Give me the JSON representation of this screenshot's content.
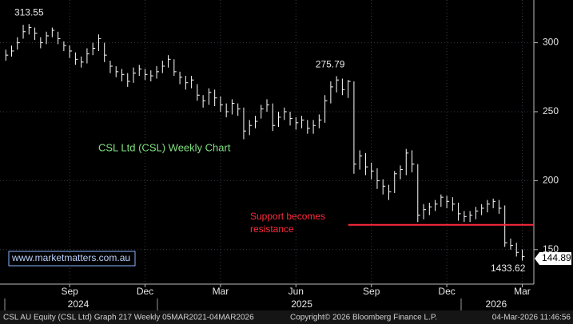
{
  "chart_data": {
    "type": "hlc_bar",
    "title": "CSL Ltd (CSL) Weekly Chart",
    "watermark": "www.marketmatters.com.au",
    "high": [
      295,
      298,
      304,
      313,
      313.55,
      311,
      304,
      308,
      311,
      308,
      301,
      298,
      293,
      290,
      296,
      300,
      306,
      300,
      287,
      283,
      281,
      278,
      282,
      284,
      281,
      280,
      283,
      287,
      291,
      288,
      279,
      276,
      276,
      270,
      262,
      267,
      266,
      261,
      256,
      259,
      256,
      253,
      244,
      247,
      255,
      259,
      256,
      250,
      253,
      250,
      246,
      247,
      244,
      244,
      248,
      262,
      272,
      275.79,
      274,
      273,
      272,
      222,
      220,
      213,
      209,
      201,
      197,
      207,
      211,
      223,
      222,
      212,
      183,
      184,
      186,
      190,
      189,
      188,
      184,
      178,
      178,
      181,
      183,
      186,
      187,
      186,
      182,
      158,
      155,
      150
    ],
    "low": [
      287,
      290,
      295,
      303,
      306,
      302,
      296,
      299,
      304,
      299,
      294,
      289,
      284,
      282,
      285,
      291,
      294,
      286,
      278,
      275,
      272,
      268,
      271,
      276,
      273,
      272,
      274,
      278,
      282,
      276,
      270,
      266,
      267,
      258,
      253,
      255,
      254,
      250,
      246,
      248,
      247,
      230,
      233,
      238,
      245,
      250,
      236,
      239,
      244,
      240,
      237,
      238,
      234,
      234,
      238,
      242,
      256,
      264,
      262,
      260,
      205,
      208,
      204,
      201,
      194,
      190,
      186,
      191,
      201,
      204,
      206,
      170,
      172,
      175,
      178,
      181,
      180,
      178,
      171,
      170,
      170,
      172,
      175,
      177,
      180,
      176,
      152,
      150,
      145,
      142
    ],
    "close": [
      291,
      294,
      300,
      308,
      311,
      307,
      300,
      305,
      309,
      303,
      298,
      294,
      288,
      286,
      292,
      296,
      303,
      291,
      283,
      279,
      277,
      272,
      278,
      281,
      277,
      276,
      279,
      283,
      288,
      279,
      275,
      271,
      273,
      262,
      258,
      264,
      260,
      255,
      250,
      256,
      252,
      236,
      240,
      243,
      252,
      255,
      240,
      246,
      250,
      245,
      242,
      244,
      238,
      240,
      244,
      258,
      268,
      273,
      266,
      272,
      212,
      218,
      210,
      207,
      200,
      196,
      192,
      205,
      208,
      220,
      212,
      175,
      179,
      181,
      183,
      188,
      185,
      183,
      176,
      174,
      175,
      178,
      180,
      183,
      185,
      180,
      155,
      153,
      148,
      144.89
    ],
    "color": "#ffffff",
    "xlim": [
      -1,
      91
    ],
    "ylim": [
      125,
      331
    ],
    "yticks": [
      150,
      200,
      250,
      300
    ],
    "xticks": [
      {
        "value": 11,
        "label": "Sep"
      },
      {
        "value": 24,
        "label": "Dec"
      },
      {
        "value": 37,
        "label": "Mar"
      },
      {
        "value": 50,
        "label": "Jun"
      },
      {
        "value": 63,
        "label": "Sep"
      },
      {
        "value": 76,
        "label": "Dec"
      },
      {
        "value": 89,
        "label": "Mar"
      }
    ],
    "years": [
      {
        "value": 12.5,
        "label": "2024"
      },
      {
        "value": 51,
        "label": "2025"
      },
      {
        "value": 84.5,
        "label": "2026"
      }
    ],
    "grid": true,
    "support_line": {
      "value": 168,
      "from": 59,
      "color": "#ff2a3c",
      "label": [
        "Support becomes",
        "resistance"
      ]
    },
    "extra_label": "1433.62",
    "footer": {
      "left": "CSL AU Equity (CSL Ltd) Graph 217 Weekly 05MAR2021-04MAR2026",
      "center": "Copyright© 2026 Bloomberg Finance L.P.",
      "right": "04-Mar-2026 11:46:56"
    }
  }
}
